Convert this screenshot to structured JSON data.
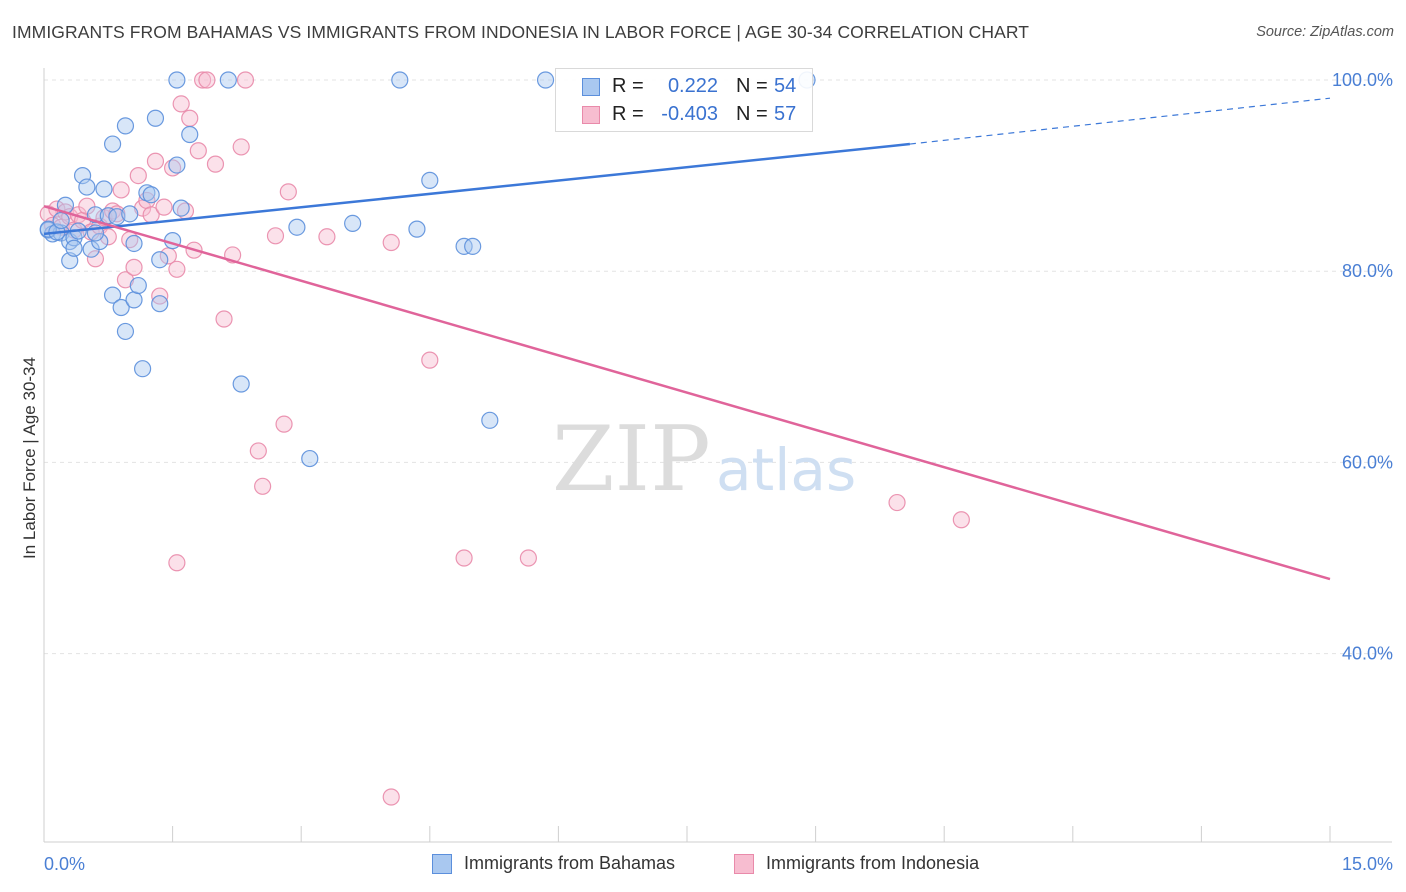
{
  "header": {
    "title": "IMMIGRANTS FROM BAHAMAS VS IMMIGRANTS FROM INDONESIA IN LABOR FORCE | AGE 30-34 CORRELATION CHART",
    "source": "Source: ZipAtlas.com"
  },
  "watermark": {
    "zip": "ZIP",
    "atlas": "atlas"
  },
  "stats": {
    "bahamas": {
      "r_label": "R =",
      "r_value": "0.222",
      "n_label": "N =",
      "n_value": "54"
    },
    "indonesia": {
      "r_label": "R =",
      "r_value": "-0.403",
      "n_label": "N =",
      "n_value": "57"
    }
  },
  "legend": {
    "bahamas": "Immigrants from Bahamas",
    "indonesia": "Immigrants from Indonesia"
  },
  "colors": {
    "bahamas_fill": "#a9c8f0",
    "bahamas_stroke": "#5b8fdc",
    "bahamas_line": "#3c78d8",
    "indonesia_fill": "#f7bdd0",
    "indonesia_stroke": "#e98aaa",
    "indonesia_line": "#e0649a",
    "tick_text": "#4a7fd4",
    "grid": "#e3e3e3"
  },
  "chart_data": {
    "type": "scatter",
    "title": "IMMIGRANTS FROM BAHAMAS VS IMMIGRANTS FROM INDONESIA IN LABOR FORCE | AGE 30-34 CORRELATION CHART",
    "xlabel": "",
    "ylabel": "In Labor Force | Age 30-34",
    "xlim": [
      0,
      15
    ],
    "ylim": [
      20,
      101
    ],
    "x_tick_labels": [
      {
        "value": 0,
        "label": "0.0%"
      },
      {
        "value": 15,
        "label": "15.0%"
      }
    ],
    "y_tick_labels": [
      {
        "value": 40,
        "label": "40.0%"
      },
      {
        "value": 60,
        "label": "60.0%"
      },
      {
        "value": 80,
        "label": "80.0%"
      },
      {
        "value": 100,
        "label": "100.0%"
      }
    ],
    "y_grid": [
      40,
      60,
      80,
      100
    ],
    "series": [
      {
        "name": "Immigrants from Bahamas",
        "r": 0.222,
        "n": 54,
        "trend": {
          "x0": 0,
          "y0": 83.9,
          "x1": 10.1,
          "y1": 93.3,
          "dash_to_x": 15,
          "dash_to_y": 98.1
        },
        "points": [
          [
            0.05,
            84.3
          ],
          [
            0.1,
            83.9
          ],
          [
            0.2,
            84.0
          ],
          [
            0.25,
            86.9
          ],
          [
            0.3,
            83.1
          ],
          [
            0.3,
            81.1
          ],
          [
            0.35,
            83.5
          ],
          [
            0.4,
            84.2
          ],
          [
            0.45,
            90.0
          ],
          [
            0.5,
            88.8
          ],
          [
            0.55,
            82.3
          ],
          [
            0.6,
            85.9
          ],
          [
            0.65,
            83.1
          ],
          [
            0.7,
            88.6
          ],
          [
            0.75,
            85.8
          ],
          [
            0.8,
            77.5
          ],
          [
            0.85,
            85.7
          ],
          [
            0.8,
            93.3
          ],
          [
            0.9,
            76.2
          ],
          [
            0.95,
            73.7
          ],
          [
            0.95,
            95.2
          ],
          [
            1.05,
            77.0
          ],
          [
            1.05,
            82.9
          ],
          [
            1.1,
            78.5
          ],
          [
            1.15,
            69.8
          ],
          [
            1.2,
            88.2
          ],
          [
            1.25,
            88.0
          ],
          [
            1.3,
            96.0
          ],
          [
            1.35,
            76.6
          ],
          [
            1.35,
            81.2
          ],
          [
            1.5,
            83.2
          ],
          [
            1.55,
            91.1
          ],
          [
            1.55,
            100.0
          ],
          [
            1.6,
            86.6
          ],
          [
            1.7,
            94.3
          ],
          [
            2.15,
            100.0
          ],
          [
            2.3,
            68.2
          ],
          [
            2.95,
            84.6
          ],
          [
            3.1,
            60.4
          ],
          [
            3.6,
            85.0
          ],
          [
            4.15,
            100.0
          ],
          [
            4.35,
            84.4
          ],
          [
            4.5,
            89.5
          ],
          [
            4.9,
            82.6
          ],
          [
            5.0,
            82.6
          ],
          [
            5.2,
            64.4
          ],
          [
            5.85,
            100.0
          ],
          [
            8.9,
            100.0
          ],
          [
            0.05,
            84.4
          ],
          [
            0.15,
            84.1
          ],
          [
            0.2,
            85.3
          ],
          [
            0.35,
            82.4
          ],
          [
            0.6,
            84.0
          ],
          [
            1.0,
            86.0
          ]
        ]
      },
      {
        "name": "Immigrants from Indonesia",
        "r": -0.403,
        "n": 57,
        "trend": {
          "x0": 0,
          "y0": 86.8,
          "x1": 15,
          "y1": 47.8
        },
        "points": [
          [
            0.05,
            86.0
          ],
          [
            0.1,
            84.8
          ],
          [
            0.15,
            86.5
          ],
          [
            0.2,
            84.6
          ],
          [
            0.25,
            86.2
          ],
          [
            0.3,
            85.7
          ],
          [
            0.35,
            84.3
          ],
          [
            0.4,
            85.9
          ],
          [
            0.45,
            85.3
          ],
          [
            0.5,
            86.8
          ],
          [
            0.55,
            84.1
          ],
          [
            0.6,
            81.3
          ],
          [
            0.65,
            84.7
          ],
          [
            0.7,
            85.6
          ],
          [
            0.75,
            83.6
          ],
          [
            0.8,
            86.3
          ],
          [
            0.85,
            86.0
          ],
          [
            0.9,
            88.5
          ],
          [
            0.95,
            79.1
          ],
          [
            1.0,
            83.3
          ],
          [
            1.05,
            80.4
          ],
          [
            1.1,
            90.0
          ],
          [
            1.15,
            86.6
          ],
          [
            1.2,
            87.4
          ],
          [
            1.25,
            85.9
          ],
          [
            1.3,
            91.5
          ],
          [
            1.35,
            77.4
          ],
          [
            1.4,
            86.7
          ],
          [
            1.45,
            81.6
          ],
          [
            1.5,
            90.8
          ],
          [
            1.55,
            49.5
          ],
          [
            1.55,
            80.2
          ],
          [
            1.6,
            97.5
          ],
          [
            1.65,
            86.3
          ],
          [
            1.7,
            96.0
          ],
          [
            1.75,
            82.2
          ],
          [
            1.8,
            92.6
          ],
          [
            1.85,
            100.0
          ],
          [
            1.9,
            100.0
          ],
          [
            2.0,
            91.2
          ],
          [
            2.1,
            75.0
          ],
          [
            2.2,
            81.7
          ],
          [
            2.3,
            93.0
          ],
          [
            2.35,
            100.0
          ],
          [
            2.5,
            61.2
          ],
          [
            2.55,
            57.5
          ],
          [
            2.7,
            83.7
          ],
          [
            2.8,
            64.0
          ],
          [
            2.85,
            88.3
          ],
          [
            3.3,
            83.6
          ],
          [
            4.05,
            83.0
          ],
          [
            4.05,
            25.0
          ],
          [
            4.5,
            70.7
          ],
          [
            4.9,
            50.0
          ],
          [
            5.65,
            50.0
          ],
          [
            9.95,
            55.8
          ],
          [
            10.7,
            54.0
          ]
        ]
      }
    ]
  }
}
